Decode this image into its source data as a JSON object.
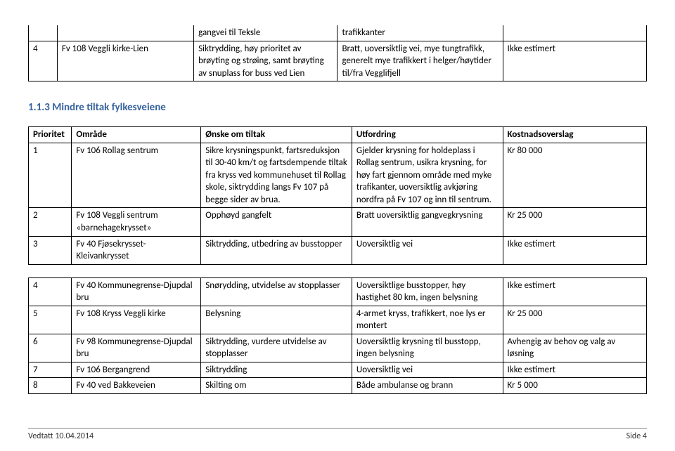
{
  "table1": {
    "rows": [
      {
        "c1": "",
        "c2": "",
        "c3": "gangvei til Teksle",
        "c4": "trafikkanter",
        "c5": ""
      },
      {
        "c1": "4",
        "c2": "Fv 108 Veggli kirke-Lien",
        "c3": "Siktrydding, høy prioritet av brøyting og strøing, samt brøyting av snuplass for buss ved Lien",
        "c4": "Bratt, uoversiktlig vei, mye tungtrafikk, generelt  mye trafikkert i helger/høytider til/fra Vegglifjell",
        "c5": "Ikke estimert"
      }
    ]
  },
  "section_heading": "1.1.3   Mindre tiltak fylkesveiene",
  "table2": {
    "header": {
      "c1": "Prioritet",
      "c2": "Område",
      "c3": "Ønske om tiltak",
      "c4": "Utfordring",
      "c5": "Kostnadsoverslag"
    },
    "rows": [
      {
        "c1": "1",
        "c2": "Fv 106 Rollag sentrum",
        "c3": "Sikre krysningspunkt, fartsreduksjon til 30-40 km/t og fartsdempende tiltak fra kryss ved kommunehuset til Rollag skole, siktrydding langs Fv 107 på begge sider av brua.",
        "c4": "Gjelder krysning for holdeplass i Rollag sentrum, usikra krysning, for høy fart gjennom område med myke trafikanter, uoversiktlig avkjøring nordfra på Fv 107 og inn til sentrum.",
        "c5": "Kr 80 000"
      },
      {
        "c1": "2",
        "c2": "Fv 108 Veggli sentrum «barnehagekrysset»",
        "c3": "Opphøyd gangfelt",
        "c4": "Bratt uoversiktlig gangvegkrysning",
        "c5": "Kr 25 000"
      },
      {
        "c1": "3",
        "c2": "Fv 40 Fjøsekrysset-Kleivankrysset",
        "c3": "Siktrydding, utbedring av busstopper",
        "c4": "Uoversiktlig vei",
        "c5": "Ikke estimert"
      },
      {
        "gap": true
      },
      {
        "c1": "4",
        "c2": "Fv 40 Kommunegrense-Djupdal bru",
        "c3": "Snørydding, utvidelse av stopplasser",
        "c4": "Uoversiktlige busstopper, høy hastighet 80 km, ingen belysning",
        "c5": "Ikke estimert"
      },
      {
        "c1": "5",
        "c2": "Fv 108 Kryss Veggli kirke",
        "c3": "Belysning",
        "c4": "4-armet kryss, trafikkert, noe lys er montert",
        "c5": "Kr 25 000"
      },
      {
        "c1": "6",
        "c2": "Fv 98 Kommunegrense-Djupdal bru",
        "c3": "Siktrydding, vurdere utvidelse av stopplasser",
        "c4": "Uoversiktlig krysning til busstopp, ingen belysning",
        "c5": "Avhengig av behov og valg av løsning"
      },
      {
        "c1": "7",
        "c2": "Fv 106 Bergangrend",
        "c3": "Siktrydding",
        "c4": "Uoversiktlig vei",
        "c5": "Ikke estimert"
      },
      {
        "c1": "8",
        "c2": "Fv 40 ved Bakkeveien",
        "c3": "Skilting om",
        "c4": "Både ambulanse og brann",
        "c5": "Kr 5 000"
      }
    ]
  },
  "footer": {
    "left": "Vedtatt 10.04.2014",
    "right": "Side 4"
  }
}
